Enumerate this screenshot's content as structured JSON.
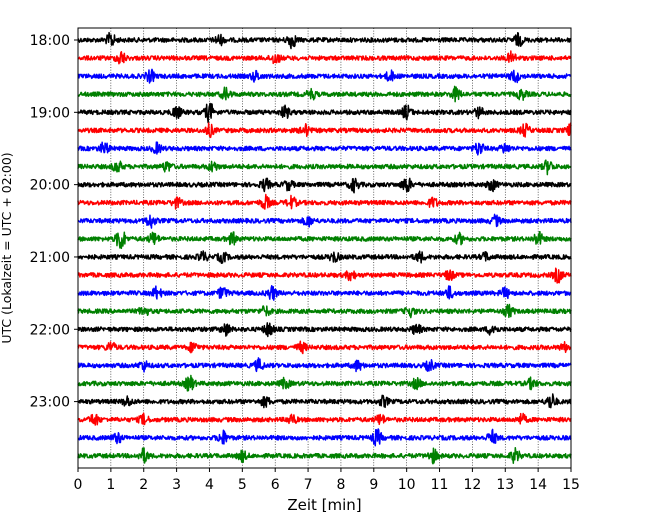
{
  "chart_data": {
    "type": "line",
    "title": "",
    "xlabel": "Zeit  [min]",
    "ylabel": "UTC (Lokalzeit = UTC + 02:00)",
    "xlim": [
      0,
      15
    ],
    "x_ticks": [
      0,
      1,
      2,
      3,
      4,
      5,
      6,
      7,
      8,
      9,
      10,
      11,
      12,
      13,
      14,
      15
    ],
    "x_tick_labels": [
      "0",
      "1",
      "2",
      "3",
      "4",
      "5",
      "6",
      "7",
      "8",
      "9",
      "10",
      "11",
      "12",
      "13",
      "14",
      "15"
    ],
    "y_ticks": [
      "18:00",
      "19:00",
      "20:00",
      "21:00",
      "22:00",
      "23:00"
    ],
    "trace_start_times": [
      "18:00",
      "18:15",
      "18:30",
      "18:45",
      "19:00",
      "19:15",
      "19:30",
      "19:45",
      "20:00",
      "20:15",
      "20:30",
      "20:45",
      "21:00",
      "21:15",
      "21:30",
      "21:45",
      "22:00",
      "22:15",
      "22:30",
      "22:45",
      "23:00",
      "23:15",
      "23:30",
      "23:45"
    ],
    "trace_colors": [
      "#000000",
      "#ff0000",
      "#0000ff",
      "#008000"
    ],
    "grid": "vertical dotted",
    "bursts": [
      [
        [
          1.0,
          0.7
        ],
        [
          6.5,
          0.8
        ],
        [
          13.4,
          0.6
        ],
        [
          4.3,
          0.5
        ]
      ],
      [
        [
          1.3,
          0.7
        ],
        [
          6.0,
          0.6
        ],
        [
          13.2,
          0.6
        ]
      ],
      [
        [
          2.2,
          0.6
        ],
        [
          5.4,
          0.5
        ],
        [
          9.5,
          0.5
        ],
        [
          13.3,
          0.6
        ]
      ],
      [
        [
          4.5,
          0.6
        ],
        [
          11.5,
          0.7
        ],
        [
          13.5,
          0.5
        ],
        [
          7.1,
          0.5
        ]
      ],
      [
        [
          3.0,
          0.6
        ],
        [
          4.0,
          1.0
        ],
        [
          6.3,
          0.6
        ],
        [
          10.0,
          0.7
        ],
        [
          12.2,
          0.5
        ]
      ],
      [
        [
          4.0,
          0.6
        ],
        [
          6.9,
          0.6
        ],
        [
          13.6,
          0.6
        ],
        [
          15.0,
          0.6
        ]
      ],
      [
        [
          0.8,
          0.6
        ],
        [
          2.4,
          0.5
        ],
        [
          12.2,
          0.7
        ],
        [
          13.0,
          0.5
        ]
      ],
      [
        [
          1.2,
          0.6
        ],
        [
          2.7,
          0.5
        ],
        [
          4.1,
          0.5
        ],
        [
          14.3,
          0.7
        ]
      ],
      [
        [
          5.7,
          0.6
        ],
        [
          6.4,
          0.5
        ],
        [
          8.4,
          0.7
        ],
        [
          10.0,
          0.8
        ],
        [
          12.6,
          0.6
        ]
      ],
      [
        [
          3.0,
          0.5
        ],
        [
          5.7,
          0.7
        ],
        [
          6.5,
          0.6
        ],
        [
          10.8,
          0.5
        ]
      ],
      [
        [
          2.2,
          0.7
        ],
        [
          7.0,
          0.5
        ],
        [
          12.7,
          0.5
        ]
      ],
      [
        [
          1.3,
          1.2
        ],
        [
          2.3,
          0.6
        ],
        [
          4.7,
          0.6
        ],
        [
          11.6,
          0.5
        ],
        [
          14.0,
          0.7
        ]
      ],
      [
        [
          3.8,
          0.5
        ],
        [
          4.4,
          0.5
        ],
        [
          7.8,
          0.5
        ],
        [
          10.4,
          0.5
        ],
        [
          12.4,
          0.4
        ]
      ],
      [
        [
          8.3,
          0.5
        ],
        [
          11.3,
          0.5
        ],
        [
          14.6,
          0.7
        ]
      ],
      [
        [
          2.4,
          0.6
        ],
        [
          4.4,
          0.6
        ],
        [
          5.9,
          0.7
        ],
        [
          11.3,
          0.6
        ],
        [
          13.0,
          0.5
        ]
      ],
      [
        [
          2.0,
          0.5
        ],
        [
          5.7,
          0.5
        ],
        [
          10.1,
          0.5
        ],
        [
          13.1,
          0.6
        ]
      ],
      [
        [
          4.5,
          0.6
        ],
        [
          5.8,
          0.7
        ],
        [
          10.3,
          0.5
        ],
        [
          12.6,
          0.6
        ]
      ],
      [
        [
          1.0,
          0.5
        ],
        [
          3.5,
          0.5
        ],
        [
          6.8,
          0.5
        ],
        [
          14.8,
          0.4
        ]
      ],
      [
        [
          2.0,
          0.5
        ],
        [
          5.5,
          0.6
        ],
        [
          8.5,
          0.5
        ],
        [
          10.7,
          0.5
        ]
      ],
      [
        [
          3.4,
          0.8
        ],
        [
          6.3,
          0.5
        ],
        [
          10.3,
          0.5
        ],
        [
          13.8,
          0.5
        ]
      ],
      [
        [
          1.5,
          0.5
        ],
        [
          5.7,
          0.5
        ],
        [
          9.3,
          0.5
        ],
        [
          14.4,
          0.8
        ]
      ],
      [
        [
          0.5,
          0.6
        ],
        [
          2.0,
          0.5
        ],
        [
          6.5,
          0.5
        ],
        [
          9.2,
          0.5
        ],
        [
          13.5,
          0.5
        ]
      ],
      [
        [
          1.2,
          0.5
        ],
        [
          4.4,
          0.7
        ],
        [
          9.1,
          0.8
        ],
        [
          12.6,
          0.7
        ]
      ],
      [
        [
          2.0,
          0.7
        ],
        [
          5.0,
          0.5
        ],
        [
          10.8,
          0.7
        ],
        [
          13.3,
          0.7
        ]
      ]
    ]
  }
}
